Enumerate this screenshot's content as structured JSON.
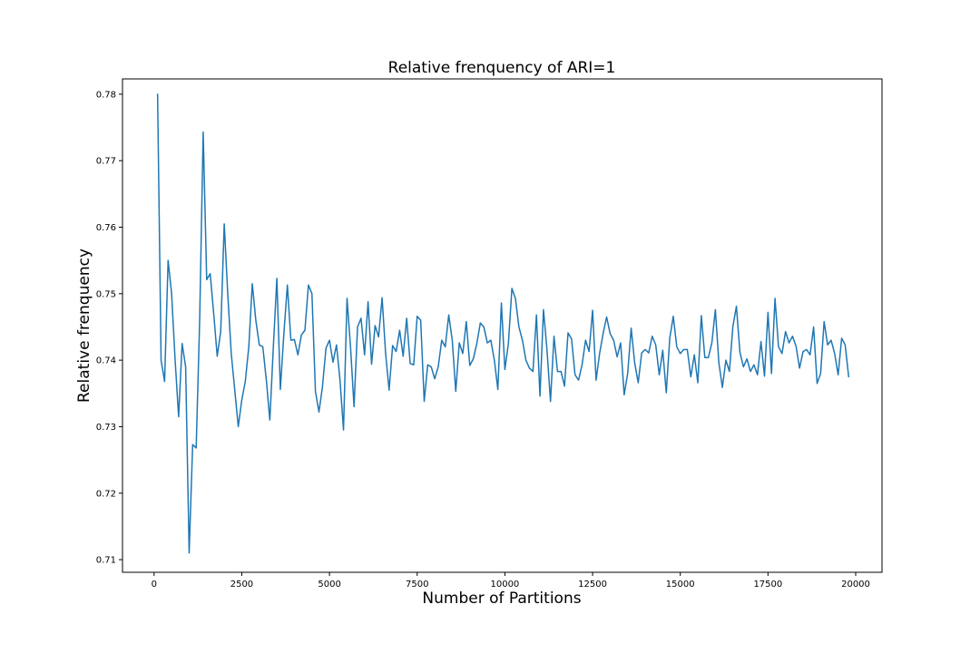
{
  "chart_data": {
    "type": "line",
    "title": "Relative frenquency of ARI=1",
    "xlabel": "Number of Partitions",
    "ylabel": "Relative frenquency",
    "xlim": [
      -900,
      20750
    ],
    "ylim": [
      0.7081,
      0.7823
    ],
    "xticks": [
      0,
      2500,
      5000,
      7500,
      10000,
      12500,
      15000,
      17500,
      20000
    ],
    "xtick_labels": [
      "0",
      "2500",
      "5000",
      "7500",
      "10000",
      "12500",
      "15000",
      "17500",
      "20000"
    ],
    "yticks": [
      0.71,
      0.72,
      0.73,
      0.74,
      0.75,
      0.76,
      0.77,
      0.78
    ],
    "ytick_labels": [
      "0.71",
      "0.72",
      "0.73",
      "0.74",
      "0.75",
      "0.76",
      "0.77",
      "0.78"
    ],
    "grid": false,
    "series_color": "#1f77b4",
    "series": [
      {
        "x": [
          100,
          200,
          300,
          400,
          500,
          600,
          700,
          800,
          900,
          1000,
          1100,
          1200,
          1300,
          1400,
          1500,
          1600,
          1700,
          1800,
          1900,
          2000,
          2100,
          2200,
          2300,
          2400,
          2500,
          2600,
          2700,
          2800,
          2900,
          3000,
          3100,
          3200,
          3300,
          3400,
          3500,
          3600,
          3700,
          3800,
          3900,
          4000,
          4100,
          4200,
          4300,
          4400,
          4500,
          4600,
          4700,
          4800,
          4900,
          5000,
          5100,
          5200,
          5300,
          5400,
          5500,
          5600,
          5700,
          5800,
          5900,
          6000,
          6100,
          6200,
          6300,
          6400,
          6500,
          6600,
          6700,
          6800,
          6900,
          7000,
          7100,
          7200,
          7300,
          7400,
          7500,
          7600,
          7700,
          7800,
          7900,
          8000,
          8100,
          8200,
          8300,
          8400,
          8500,
          8600,
          8700,
          8800,
          8900,
          9000,
          9100,
          9200,
          9300,
          9400,
          9500,
          9600,
          9700,
          9800,
          9900,
          10000,
          10100,
          10200,
          10300,
          10400,
          10500,
          10600,
          10700,
          10800,
          10900,
          11000,
          11100,
          11200,
          11300,
          11400,
          11500,
          11600,
          11700,
          11800,
          11900,
          12000,
          12100,
          12200,
          12300,
          12400,
          12500,
          12600,
          12700,
          12800,
          12900,
          13000,
          13100,
          13200,
          13300,
          13400,
          13500,
          13600,
          13700,
          13800,
          13900,
          14000,
          14100,
          14200,
          14300,
          14400,
          14500,
          14600,
          14700,
          14800,
          14900,
          15000,
          15100,
          15200,
          15300,
          15400,
          15500,
          15600,
          15700,
          15800,
          15900,
          16000,
          16100,
          16200,
          16300,
          16400,
          16500,
          16600,
          16700,
          16800,
          16900,
          17000,
          17100,
          17200,
          17300,
          17400,
          17500,
          17600,
          17700,
          17800,
          17900,
          18000,
          18100,
          18200,
          18300,
          18400,
          18500,
          18600,
          18700,
          18800,
          18900,
          19000,
          19100,
          19200,
          19300,
          19400,
          19500,
          19600,
          19700,
          19800
        ],
        "y": [
          0.78,
          0.74,
          0.7368,
          0.755,
          0.75,
          0.74,
          0.7315,
          0.7425,
          0.739,
          0.711,
          0.7273,
          0.7268,
          0.746,
          0.7743,
          0.7521,
          0.753,
          0.747,
          0.7406,
          0.7443,
          0.7605,
          0.75,
          0.741,
          0.7355,
          0.73,
          0.734,
          0.7368,
          0.742,
          0.7515,
          0.746,
          0.7423,
          0.742,
          0.737,
          0.731,
          0.742,
          0.7523,
          0.7356,
          0.744,
          0.7513,
          0.743,
          0.7431,
          0.7408,
          0.7438,
          0.7445,
          0.7513,
          0.75,
          0.7353,
          0.7322,
          0.736,
          0.7418,
          0.743,
          0.7397,
          0.7423,
          0.737,
          0.7295,
          0.7493,
          0.742,
          0.733,
          0.745,
          0.7463,
          0.7408,
          0.7488,
          0.7394,
          0.7452,
          0.7435,
          0.7494,
          0.741,
          0.7355,
          0.7422,
          0.7413,
          0.7445,
          0.7406,
          0.7463,
          0.7395,
          0.7393,
          0.7466,
          0.746,
          0.7338,
          0.7393,
          0.739,
          0.7372,
          0.739,
          0.743,
          0.742,
          0.7468,
          0.743,
          0.7353,
          0.7426,
          0.741,
          0.7458,
          0.7392,
          0.7402,
          0.7425,
          0.7456,
          0.745,
          0.7426,
          0.743,
          0.74,
          0.7356,
          0.7486,
          0.7386,
          0.7425,
          0.7508,
          0.7493,
          0.745,
          0.743,
          0.74,
          0.7388,
          0.7383,
          0.7468,
          0.7346,
          0.7476,
          0.7416,
          0.7338,
          0.7436,
          0.7383,
          0.7383,
          0.7361,
          0.7441,
          0.7432,
          0.7378,
          0.737,
          0.7393,
          0.743,
          0.7413,
          0.7475,
          0.737,
          0.741,
          0.744,
          0.7465,
          0.744,
          0.743,
          0.7405,
          0.7426,
          0.7348,
          0.738,
          0.7448,
          0.7396,
          0.7366,
          0.7411,
          0.7416,
          0.7411,
          0.7436,
          0.7423,
          0.7378,
          0.7415,
          0.7351,
          0.7433,
          0.7466,
          0.742,
          0.741,
          0.7416,
          0.7416,
          0.7375,
          0.7408,
          0.7366,
          0.7467,
          0.7404,
          0.7404,
          0.7426,
          0.7476,
          0.7396,
          0.7359,
          0.74,
          0.7383,
          0.7451,
          0.7481,
          0.7412,
          0.739,
          0.7402,
          0.7383,
          0.7393,
          0.7378,
          0.7428,
          0.7376,
          0.7472,
          0.738,
          0.7493,
          0.742,
          0.741,
          0.7443,
          0.7426,
          0.7436,
          0.7421,
          0.7388,
          0.7413,
          0.7416,
          0.7408,
          0.745,
          0.7365,
          0.738,
          0.7458,
          0.7423,
          0.743,
          0.741,
          0.7378,
          0.7433,
          0.7423,
          0.7375
        ]
      }
    ]
  }
}
